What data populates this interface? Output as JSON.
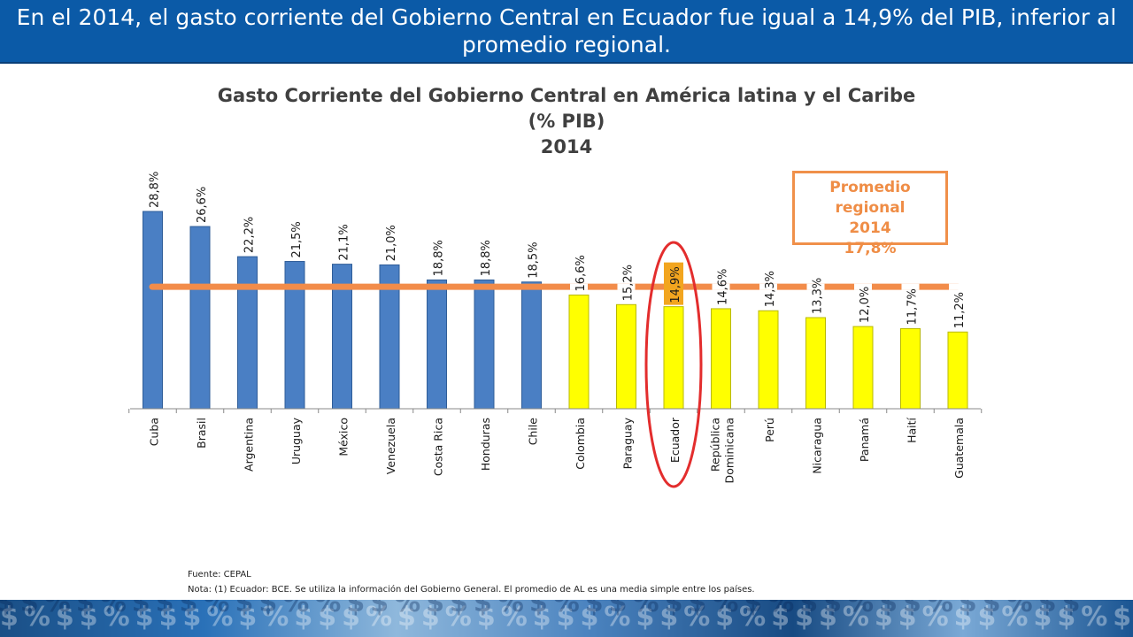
{
  "header": {
    "headline": "En el 2014, el gasto corriente del Gobierno Central en Ecuador fue igual a 14,9% del PIB, inferior al promedio regional."
  },
  "average_box": {
    "line1": "Promedio regional",
    "line2": "2014",
    "line3": "17,8%"
  },
  "footer": {
    "source": "Fuente: CEPAL",
    "note": "Nota: (1) Ecuador: BCE. Se utiliza la información del Gobierno General. El promedio de AL es una media simple entre los países."
  },
  "colors": {
    "header": "#0b5aa7",
    "blue_bar": "#4a7fc4",
    "yellow_bar": "#ffff00",
    "ecuador_label_bg": "#f2a51f",
    "average_line": "#f28c4a",
    "highlight": "#e32d2d"
  },
  "chart_data": {
    "type": "bar",
    "title": "Gasto Corriente del Gobierno Central en América latina y el Caribe",
    "subtitle": "(% PIB)",
    "year": "2014",
    "categories": [
      "Cuba",
      "Brasil",
      "Argentina",
      "Uruguay",
      "México",
      "Venezuela",
      "Costa Rica",
      "Honduras",
      "Chile",
      "Colombia",
      "Paraguay",
      "Ecuador",
      "República Dominicana",
      "Perú",
      "Nicaragua",
      "Panamá",
      "Haití",
      "Guatemala"
    ],
    "category_labels": [
      [
        "Cuba"
      ],
      [
        "Brasil"
      ],
      [
        "Argentina"
      ],
      [
        "Uruguay"
      ],
      [
        "México"
      ],
      [
        "Venezuela"
      ],
      [
        "Costa Rica"
      ],
      [
        "Honduras"
      ],
      [
        "Chile"
      ],
      [
        "Colombia"
      ],
      [
        "Paraguay"
      ],
      [
        "Ecuador"
      ],
      [
        "República",
        "Dominicana"
      ],
      [
        "Perú"
      ],
      [
        "Nicaragua"
      ],
      [
        "Panamá"
      ],
      [
        "Haití"
      ],
      [
        "Guatemala"
      ]
    ],
    "values": [
      28.8,
      26.6,
      22.2,
      21.5,
      21.1,
      21.0,
      18.8,
      18.8,
      18.5,
      16.6,
      15.2,
      14.9,
      14.6,
      14.3,
      13.3,
      12.0,
      11.7,
      11.2
    ],
    "value_labels": [
      "28,8%",
      "26,6%",
      "22,2%",
      "21,5%",
      "21,1%",
      "21,0%",
      "18,8%",
      "18,8%",
      "18,5%",
      "16,6%",
      "15,2%",
      "14,9%",
      "14,6%",
      "14,3%",
      "13,3%",
      "12,0%",
      "11,7%",
      "11,2%"
    ],
    "bar_colors": [
      "blue",
      "blue",
      "blue",
      "blue",
      "blue",
      "blue",
      "blue",
      "blue",
      "blue",
      "yellow",
      "yellow",
      "yellow",
      "yellow",
      "yellow",
      "yellow",
      "yellow",
      "yellow",
      "yellow"
    ],
    "average": 17.8,
    "highlight": "Ecuador",
    "ylim": [
      0,
      30
    ],
    "grid": false
  }
}
